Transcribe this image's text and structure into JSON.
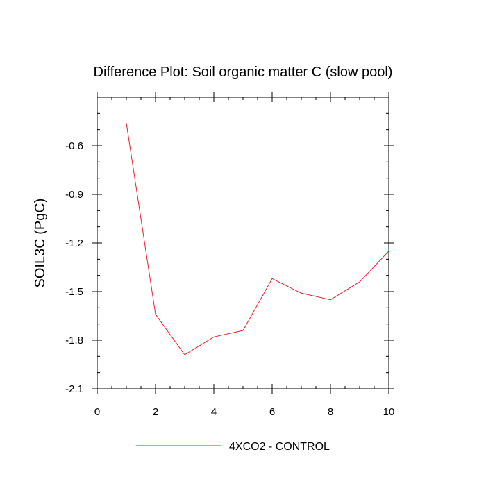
{
  "chart_data": {
    "type": "line",
    "title": "Difference Plot: Soil organic matter C (slow pool)",
    "xlabel": "",
    "ylabel": "SOIL3C  (PgC)",
    "xlim": [
      0,
      10
    ],
    "ylim": [
      -2.1,
      -0.3
    ],
    "xticks": [
      0,
      2,
      4,
      6,
      8,
      10
    ],
    "yticks": [
      -2.1,
      -1.8,
      -1.5,
      -1.2,
      -0.9,
      -0.6
    ],
    "xtick_labels": [
      "0",
      "2",
      "4",
      "6",
      "8",
      "10"
    ],
    "ytick_labels": [
      "-2.1",
      "-1.8",
      "-1.5",
      "-1.2",
      "-0.9",
      "-0.6"
    ],
    "grid": false,
    "legend_position": "bottom-center",
    "series": [
      {
        "name": "4XCO2 - CONTROL",
        "color": "#e8202a",
        "x": [
          1,
          2,
          3,
          4,
          5,
          6,
          7,
          8,
          9,
          10
        ],
        "values": [
          -0.46,
          -1.64,
          -1.89,
          -1.78,
          -1.74,
          -1.42,
          -1.51,
          -1.55,
          -1.44,
          -1.25
        ]
      }
    ]
  }
}
